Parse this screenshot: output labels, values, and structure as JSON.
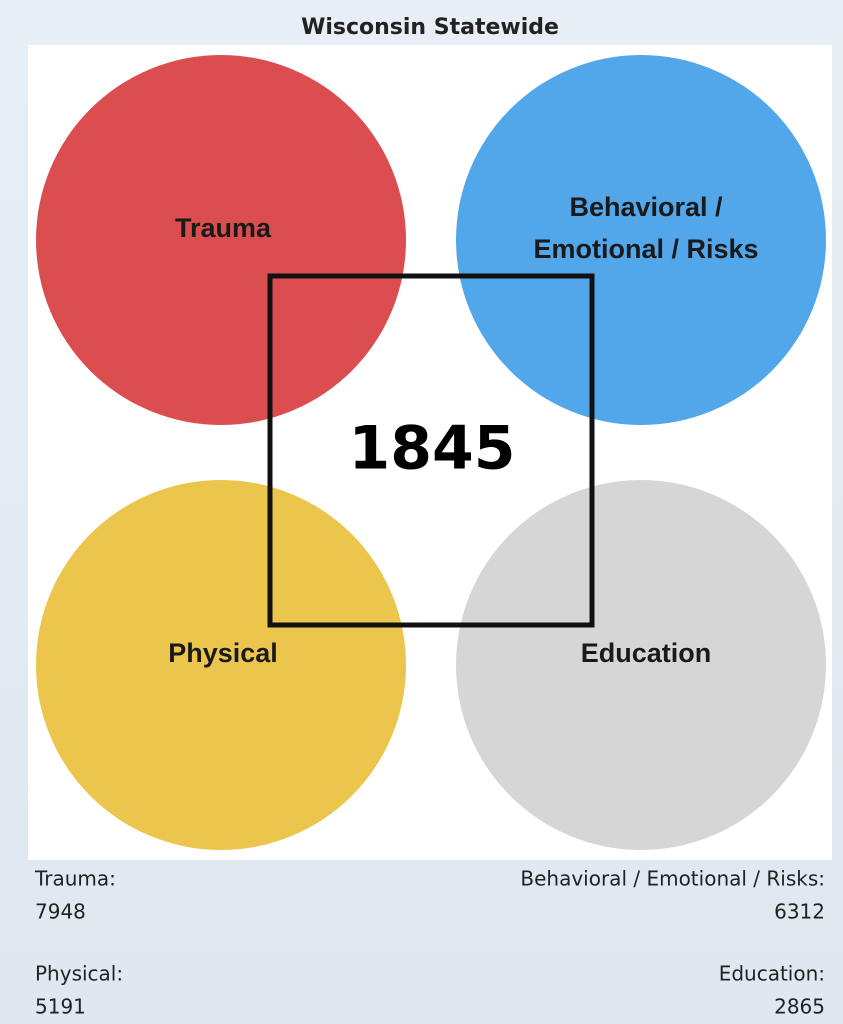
{
  "header": {
    "title": "Wisconsin Statewide"
  },
  "circles": [
    {
      "label": [
        "Trauma"
      ],
      "color": "#db4d4f"
    },
    {
      "label": [
        "Behavioral /",
        "Emotional / Risks"
      ],
      "color": "#52a6ea"
    },
    {
      "label": [
        "Physical"
      ],
      "color": "#ecc54c"
    },
    {
      "label": [
        "Education"
      ],
      "color": "#d6d6d6"
    }
  ],
  "center": {
    "value": 1845
  },
  "stats": [
    {
      "label": "Trauma:",
      "value": 7948
    },
    {
      "label": "Behavioral / Emotional / Risks:",
      "value": 6312
    },
    {
      "label": "Physical:",
      "value": 5191
    },
    {
      "label": "Education:",
      "value": 2865
    }
  ]
}
